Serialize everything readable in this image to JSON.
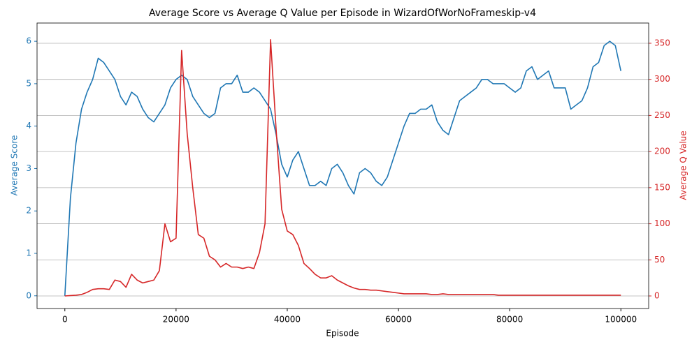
{
  "chart_data": {
    "type": "line",
    "title": "Average Score vs Average Q Value per Episode in WizardOfWorNoFrameskip-v4",
    "x_label": "Episode",
    "y_label": "Average Score",
    "y2_label": "Average Q Value",
    "x": [
      0,
      1000,
      2000,
      3000,
      4000,
      5000,
      6000,
      7000,
      8000,
      9000,
      10000,
      11000,
      12000,
      13000,
      14000,
      15000,
      16000,
      17000,
      18000,
      19000,
      20000,
      21000,
      22000,
      23000,
      24000,
      25000,
      26000,
      27000,
      28000,
      29000,
      30000,
      31000,
      32000,
      33000,
      34000,
      35000,
      36000,
      37000,
      38000,
      39000,
      40000,
      41000,
      42000,
      43000,
      44000,
      45000,
      46000,
      47000,
      48000,
      49000,
      50000,
      51000,
      52000,
      53000,
      54000,
      55000,
      56000,
      57000,
      58000,
      59000,
      60000,
      61000,
      62000,
      63000,
      64000,
      65000,
      66000,
      67000,
      68000,
      69000,
      70000,
      71000,
      72000,
      73000,
      74000,
      75000,
      76000,
      77000,
      78000,
      79000,
      80000,
      81000,
      82000,
      83000,
      84000,
      85000,
      86000,
      87000,
      88000,
      89000,
      90000,
      91000,
      92000,
      93000,
      94000,
      95000,
      96000,
      97000,
      98000,
      99000,
      100000
    ],
    "series": [
      {
        "name": "Average Score",
        "color": "#1f77b4",
        "axis": "y",
        "values": [
          0,
          2.3,
          3.6,
          4.4,
          4.8,
          5.1,
          5.6,
          5.5,
          5.3,
          5.1,
          4.7,
          4.5,
          4.8,
          4.7,
          4.4,
          4.2,
          4.1,
          4.3,
          4.5,
          4.9,
          5.1,
          5.2,
          5.1,
          4.7,
          4.5,
          4.3,
          4.2,
          4.3,
          4.9,
          5.0,
          5.0,
          5.2,
          4.8,
          4.8,
          4.9,
          4.8,
          4.6,
          4.4,
          3.8,
          3.1,
          2.8,
          3.2,
          3.4,
          3.0,
          2.6,
          2.6,
          2.7,
          2.6,
          3.0,
          3.1,
          2.9,
          2.6,
          2.4,
          2.9,
          3.0,
          2.9,
          2.7,
          2.6,
          2.8,
          3.2,
          3.6,
          4.0,
          4.3,
          4.3,
          4.4,
          4.4,
          4.5,
          4.1,
          3.9,
          3.8,
          4.2,
          4.6,
          4.7,
          4.8,
          4.9,
          5.1,
          5.1,
          5.0,
          5.0,
          5.0,
          4.9,
          4.8,
          4.9,
          5.3,
          5.4,
          5.1,
          5.2,
          5.3,
          4.9,
          4.9,
          4.9,
          4.4,
          4.5,
          4.6,
          4.9,
          5.4,
          5.5,
          5.9,
          6.0,
          5.9,
          5.3
        ]
      },
      {
        "name": "Average Q Value",
        "color": "#d62728",
        "axis": "y2",
        "values": [
          0,
          0.5,
          1,
          2,
          5,
          9,
          10,
          10,
          9,
          22,
          20,
          12,
          30,
          22,
          18,
          20,
          22,
          35,
          100,
          75,
          80,
          340,
          225,
          150,
          85,
          80,
          55,
          50,
          40,
          45,
          40,
          40,
          38,
          40,
          38,
          60,
          100,
          355,
          230,
          120,
          90,
          85,
          70,
          45,
          38,
          30,
          25,
          25,
          28,
          22,
          18,
          14,
          11,
          9,
          9,
          8,
          8,
          7,
          6,
          5,
          4,
          3,
          3,
          3,
          3,
          3,
          2,
          2,
          3,
          2,
          2,
          2,
          2,
          2,
          2,
          2,
          2,
          2,
          1,
          1,
          1,
          1,
          1,
          1,
          1,
          1,
          1,
          1,
          1,
          1,
          1,
          1,
          1,
          1,
          1,
          1,
          1,
          1,
          1,
          1,
          1
        ]
      }
    ],
    "xlim": [
      -5000,
      105000
    ],
    "xticks": [
      0,
      20000,
      40000,
      60000,
      80000,
      100000
    ],
    "ylim": [
      -0.3,
      6.43
    ],
    "yticks": [
      0,
      1,
      2,
      3,
      4,
      5,
      6
    ],
    "y2lim": [
      -17.4,
      378
    ],
    "y2ticks": [
      0,
      50,
      100,
      150,
      200,
      250,
      300,
      350
    ],
    "grid": "y2"
  }
}
